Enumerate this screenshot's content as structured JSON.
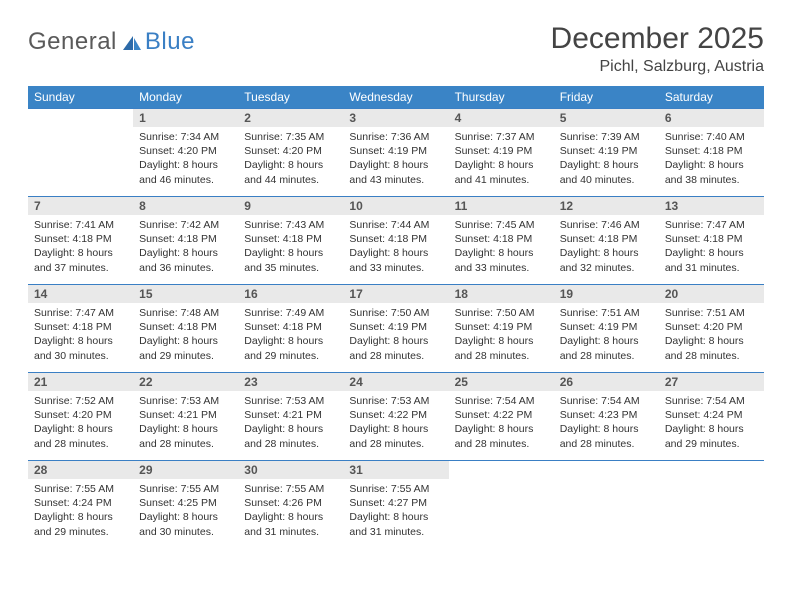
{
  "logo": {
    "general": "General",
    "blue": "Blue"
  },
  "header": {
    "title": "December 2025",
    "location": "Pichl, Salzburg, Austria"
  },
  "colors": {
    "header_bg": "#3a84c6",
    "border": "#3a7fc4",
    "daynum_bg": "#e9e9e9"
  },
  "fonts": {
    "title_size": 30,
    "location_size": 16,
    "dayhead_size": 12,
    "daytext_size": 10.5
  },
  "dayNames": [
    "Sunday",
    "Monday",
    "Tuesday",
    "Wednesday",
    "Thursday",
    "Friday",
    "Saturday"
  ],
  "weeks": [
    [
      null,
      {
        "n": "1",
        "sunrise": "7:34 AM",
        "sunset": "4:20 PM",
        "daylight": "8 hours and 46 minutes."
      },
      {
        "n": "2",
        "sunrise": "7:35 AM",
        "sunset": "4:20 PM",
        "daylight": "8 hours and 44 minutes."
      },
      {
        "n": "3",
        "sunrise": "7:36 AM",
        "sunset": "4:19 PM",
        "daylight": "8 hours and 43 minutes."
      },
      {
        "n": "4",
        "sunrise": "7:37 AM",
        "sunset": "4:19 PM",
        "daylight": "8 hours and 41 minutes."
      },
      {
        "n": "5",
        "sunrise": "7:39 AM",
        "sunset": "4:19 PM",
        "daylight": "8 hours and 40 minutes."
      },
      {
        "n": "6",
        "sunrise": "7:40 AM",
        "sunset": "4:18 PM",
        "daylight": "8 hours and 38 minutes."
      }
    ],
    [
      {
        "n": "7",
        "sunrise": "7:41 AM",
        "sunset": "4:18 PM",
        "daylight": "8 hours and 37 minutes."
      },
      {
        "n": "8",
        "sunrise": "7:42 AM",
        "sunset": "4:18 PM",
        "daylight": "8 hours and 36 minutes."
      },
      {
        "n": "9",
        "sunrise": "7:43 AM",
        "sunset": "4:18 PM",
        "daylight": "8 hours and 35 minutes."
      },
      {
        "n": "10",
        "sunrise": "7:44 AM",
        "sunset": "4:18 PM",
        "daylight": "8 hours and 33 minutes."
      },
      {
        "n": "11",
        "sunrise": "7:45 AM",
        "sunset": "4:18 PM",
        "daylight": "8 hours and 33 minutes."
      },
      {
        "n": "12",
        "sunrise": "7:46 AM",
        "sunset": "4:18 PM",
        "daylight": "8 hours and 32 minutes."
      },
      {
        "n": "13",
        "sunrise": "7:47 AM",
        "sunset": "4:18 PM",
        "daylight": "8 hours and 31 minutes."
      }
    ],
    [
      {
        "n": "14",
        "sunrise": "7:47 AM",
        "sunset": "4:18 PM",
        "daylight": "8 hours and 30 minutes."
      },
      {
        "n": "15",
        "sunrise": "7:48 AM",
        "sunset": "4:18 PM",
        "daylight": "8 hours and 29 minutes."
      },
      {
        "n": "16",
        "sunrise": "7:49 AM",
        "sunset": "4:18 PM",
        "daylight": "8 hours and 29 minutes."
      },
      {
        "n": "17",
        "sunrise": "7:50 AM",
        "sunset": "4:19 PM",
        "daylight": "8 hours and 28 minutes."
      },
      {
        "n": "18",
        "sunrise": "7:50 AM",
        "sunset": "4:19 PM",
        "daylight": "8 hours and 28 minutes."
      },
      {
        "n": "19",
        "sunrise": "7:51 AM",
        "sunset": "4:19 PM",
        "daylight": "8 hours and 28 minutes."
      },
      {
        "n": "20",
        "sunrise": "7:51 AM",
        "sunset": "4:20 PM",
        "daylight": "8 hours and 28 minutes."
      }
    ],
    [
      {
        "n": "21",
        "sunrise": "7:52 AM",
        "sunset": "4:20 PM",
        "daylight": "8 hours and 28 minutes."
      },
      {
        "n": "22",
        "sunrise": "7:53 AM",
        "sunset": "4:21 PM",
        "daylight": "8 hours and 28 minutes."
      },
      {
        "n": "23",
        "sunrise": "7:53 AM",
        "sunset": "4:21 PM",
        "daylight": "8 hours and 28 minutes."
      },
      {
        "n": "24",
        "sunrise": "7:53 AM",
        "sunset": "4:22 PM",
        "daylight": "8 hours and 28 minutes."
      },
      {
        "n": "25",
        "sunrise": "7:54 AM",
        "sunset": "4:22 PM",
        "daylight": "8 hours and 28 minutes."
      },
      {
        "n": "26",
        "sunrise": "7:54 AM",
        "sunset": "4:23 PM",
        "daylight": "8 hours and 28 minutes."
      },
      {
        "n": "27",
        "sunrise": "7:54 AM",
        "sunset": "4:24 PM",
        "daylight": "8 hours and 29 minutes."
      }
    ],
    [
      {
        "n": "28",
        "sunrise": "7:55 AM",
        "sunset": "4:24 PM",
        "daylight": "8 hours and 29 minutes."
      },
      {
        "n": "29",
        "sunrise": "7:55 AM",
        "sunset": "4:25 PM",
        "daylight": "8 hours and 30 minutes."
      },
      {
        "n": "30",
        "sunrise": "7:55 AM",
        "sunset": "4:26 PM",
        "daylight": "8 hours and 31 minutes."
      },
      {
        "n": "31",
        "sunrise": "7:55 AM",
        "sunset": "4:27 PM",
        "daylight": "8 hours and 31 minutes."
      },
      null,
      null,
      null
    ]
  ],
  "labels": {
    "sunrise": "Sunrise:",
    "sunset": "Sunset:",
    "daylight": "Daylight:"
  }
}
